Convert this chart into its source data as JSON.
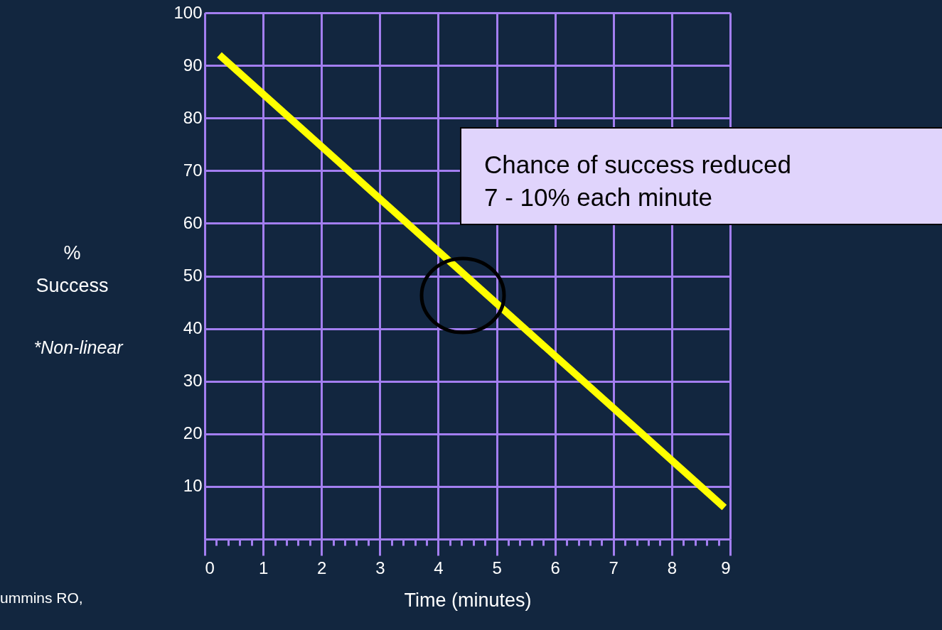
{
  "chart_data": {
    "type": "line",
    "xlabel": "Time (minutes)",
    "ylabel": "%\nSuccess",
    "x": [
      0.25,
      8.9
    ],
    "series": [
      {
        "color": "#ffff00",
        "values": [
          92,
          6
        ]
      }
    ],
    "xlim": [
      0,
      9
    ],
    "ylim": [
      0,
      100
    ],
    "xticks": [
      0,
      {
        "value": 0.2,
        "label": null
      },
      {
        "value": 0.4,
        "label": null
      },
      {
        "value": 0.6,
        "label": null
      },
      {
        "value": 0.8,
        "label": null
      },
      1,
      {
        "value": 1.2,
        "label": null
      },
      {
        "value": 1.4,
        "label": null
      },
      {
        "value": 1.6,
        "label": null
      },
      {
        "value": 1.8,
        "label": null
      },
      2,
      {
        "value": 2.2,
        "label": null
      },
      {
        "value": 2.4,
        "label": null
      },
      {
        "value": 2.6,
        "label": null
      },
      {
        "value": 2.8,
        "label": null
      },
      3,
      {
        "value": 3.2,
        "label": null
      },
      {
        "value": 3.4,
        "label": null
      },
      {
        "value": 3.6,
        "label": null
      },
      {
        "value": 3.8,
        "label": null
      },
      4,
      {
        "value": 4.2,
        "label": null
      },
      {
        "value": 4.4,
        "label": null
      },
      {
        "value": 4.6,
        "label": null
      },
      {
        "value": 4.8,
        "label": null
      },
      5,
      {
        "value": 5.2,
        "label": null
      },
      {
        "value": 5.4,
        "label": null
      },
      {
        "value": 5.6,
        "label": null
      },
      {
        "value": 5.8,
        "label": null
      },
      6,
      {
        "value": 6.2,
        "label": null
      },
      {
        "value": 6.4,
        "label": null
      },
      {
        "value": 6.6,
        "label": null
      },
      {
        "value": 6.8,
        "label": null
      },
      7,
      {
        "value": 7.2,
        "label": null
      },
      {
        "value": 7.4,
        "label": null
      },
      {
        "value": 7.6,
        "label": null
      },
      {
        "value": 7.8,
        "label": null
      },
      8,
      {
        "value": 8.2,
        "label": null
      },
      {
        "value": 8.4,
        "label": null
      },
      {
        "value": 8.6,
        "label": null
      },
      {
        "value": 8.8,
        "label": null
      },
      9
    ],
    "yticks": [
      10,
      20,
      30,
      40,
      50,
      60,
      70,
      80,
      90,
      100
    ],
    "grid": true,
    "annotations": [
      "Chance of success reduced\n7 - 10% each minute",
      "*Non-linear",
      "ummins RO,"
    ]
  }
}
